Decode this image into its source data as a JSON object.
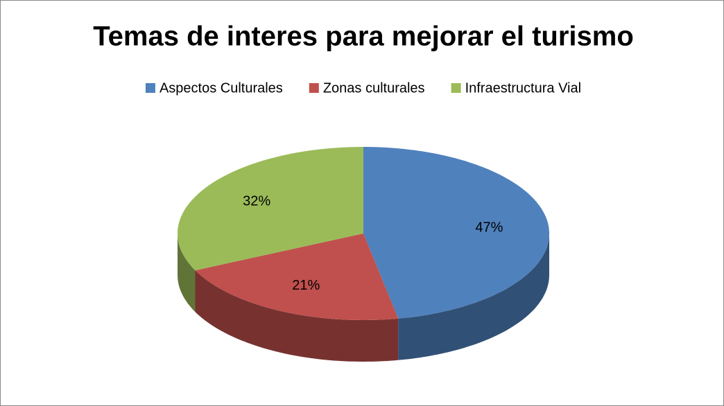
{
  "chart_data": {
    "type": "pie",
    "title": "Temas de interes para mejorar el turismo",
    "categories": [
      "Aspectos Culturales",
      "Zonas culturales",
      "Infraestructura Vial"
    ],
    "values": [
      47,
      21,
      32
    ],
    "value_labels": [
      "47%",
      "21%",
      "32%"
    ],
    "colors": [
      "#4f81bd",
      "#c0504d",
      "#9bbb59"
    ],
    "legend": "top"
  }
}
